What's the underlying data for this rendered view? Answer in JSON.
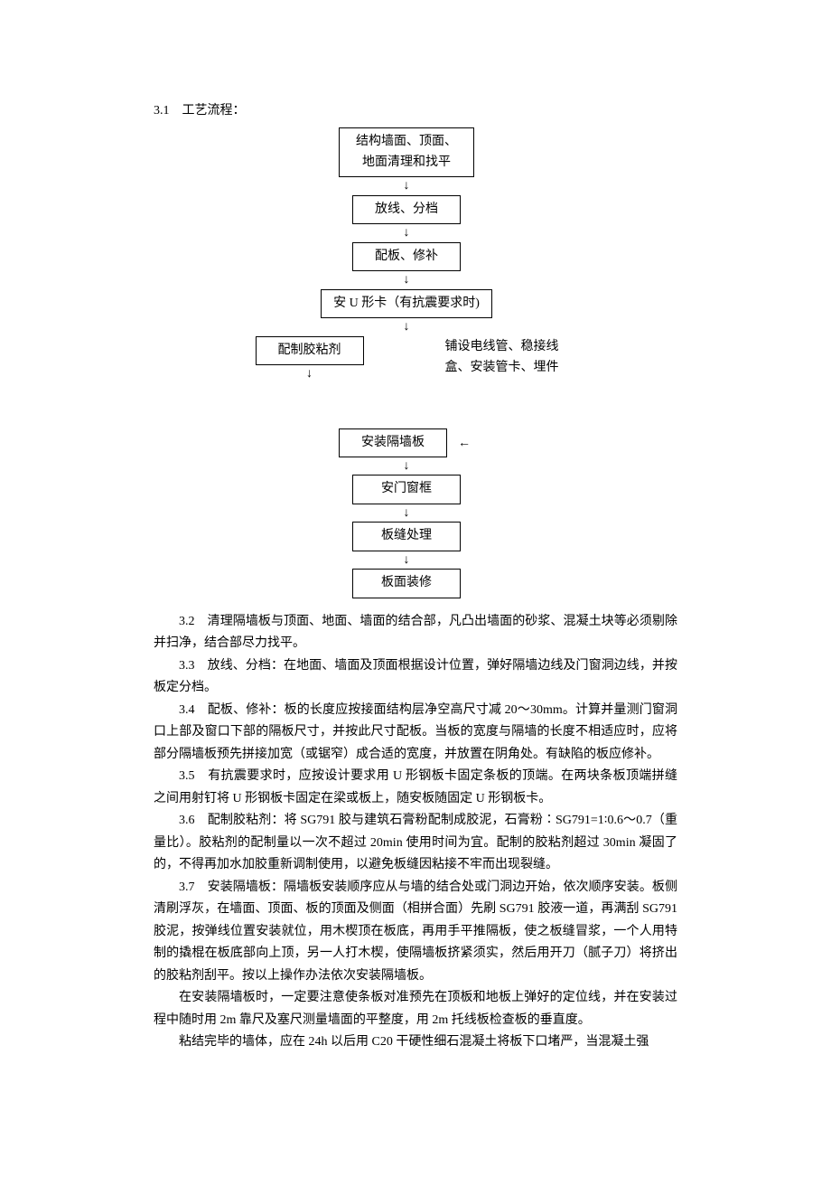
{
  "heading_3_1": "3.1　工艺流程：",
  "flow": {
    "n1_l1": "结构墙面、顶面、",
    "n1_l2": "地面清理和找平",
    "n2": "放线、分档",
    "n3": "配板、修补",
    "n4": "安 U 形卡（有抗震要求时)",
    "n5": "配制胶粘剂",
    "side_l1": "铺设电线管、稳接线",
    "side_l2": "盒、安装管卡、埋件",
    "n6": "安装隔墙板",
    "n7": "安门窗框",
    "n8": "板缝处理",
    "n9": "板面装修",
    "arrow_down": "↓",
    "arrow_left": "←"
  },
  "p3_2": "3.2　清理隔墙板与顶面、地面、墙面的结合部，凡凸出墙面的砂浆、混凝土块等必须剔除并扫净，结合部尽力找平。",
  "p3_3": "3.3　放线、分档：在地面、墙面及顶面根据设计位置，弹好隔墙边线及门窗洞边线，并按板定分档。",
  "p3_4": "3.4　配板、修补：板的长度应按接面结构层净空高尺寸减 20～30mm。计算并量测门窗洞口上部及窗口下部的隔板尺寸，并按此尺寸配板。当板的宽度与隔墙的长度不相适应时，应将部分隔墙板预先拼接加宽（或锯窄）成合适的宽度，并放置在阴角处。有缺陷的板应修补。",
  "p3_5": "3.5　有抗震要求时，应按设计要求用 U 形钢板卡固定条板的顶端。在两块条板顶端拼缝之间用射钉将 U 形钢板卡固定在梁或板上，随安板随固定 U 形钢板卡。",
  "p3_6": "3.6　配制胶粘剂：将 SG791 胶与建筑石膏粉配制成胶泥，石膏粉∶SG791=1∶0.6～0.7（重量比）。胶粘剂的配制量以一次不超过 20min 使用时间为宜。配制的胶粘剂超过 30min 凝固了的，不得再加水加胶重新调制使用，以避免板缝因粘接不牢而出现裂缝。",
  "p3_7": "3.7　安装隔墙板：隔墙板安装顺序应从与墙的结合处或门洞边开始，依次顺序安装。板侧清刷浮灰，在墙面、顶面、板的顶面及侧面（相拼合面）先刷 SG791 胶液一道，再满刮 SG791 胶泥，按弹线位置安装就位，用木楔顶在板底，再用手平推隔板，使之板缝冒浆，一个人用特制的撬棍在板底部向上顶，另一人打木楔，使隔墙板挤紧须实，然后用开刀（腻子刀）将挤出的胶粘剂刮平。按以上操作办法依次安装隔墙板。",
  "p3_7a": "在安装隔墙板时，一定要注意使条板对准预先在顶板和地板上弹好的定位线，并在安装过程中随时用 2m 靠尺及塞尺测量墙面的平整度，用 2m 托线板检查板的垂直度。",
  "p3_7b": "粘结完毕的墙体，应在 24h 以后用 C20 干硬性细石混凝土将板下口堵严，当混凝土强"
}
